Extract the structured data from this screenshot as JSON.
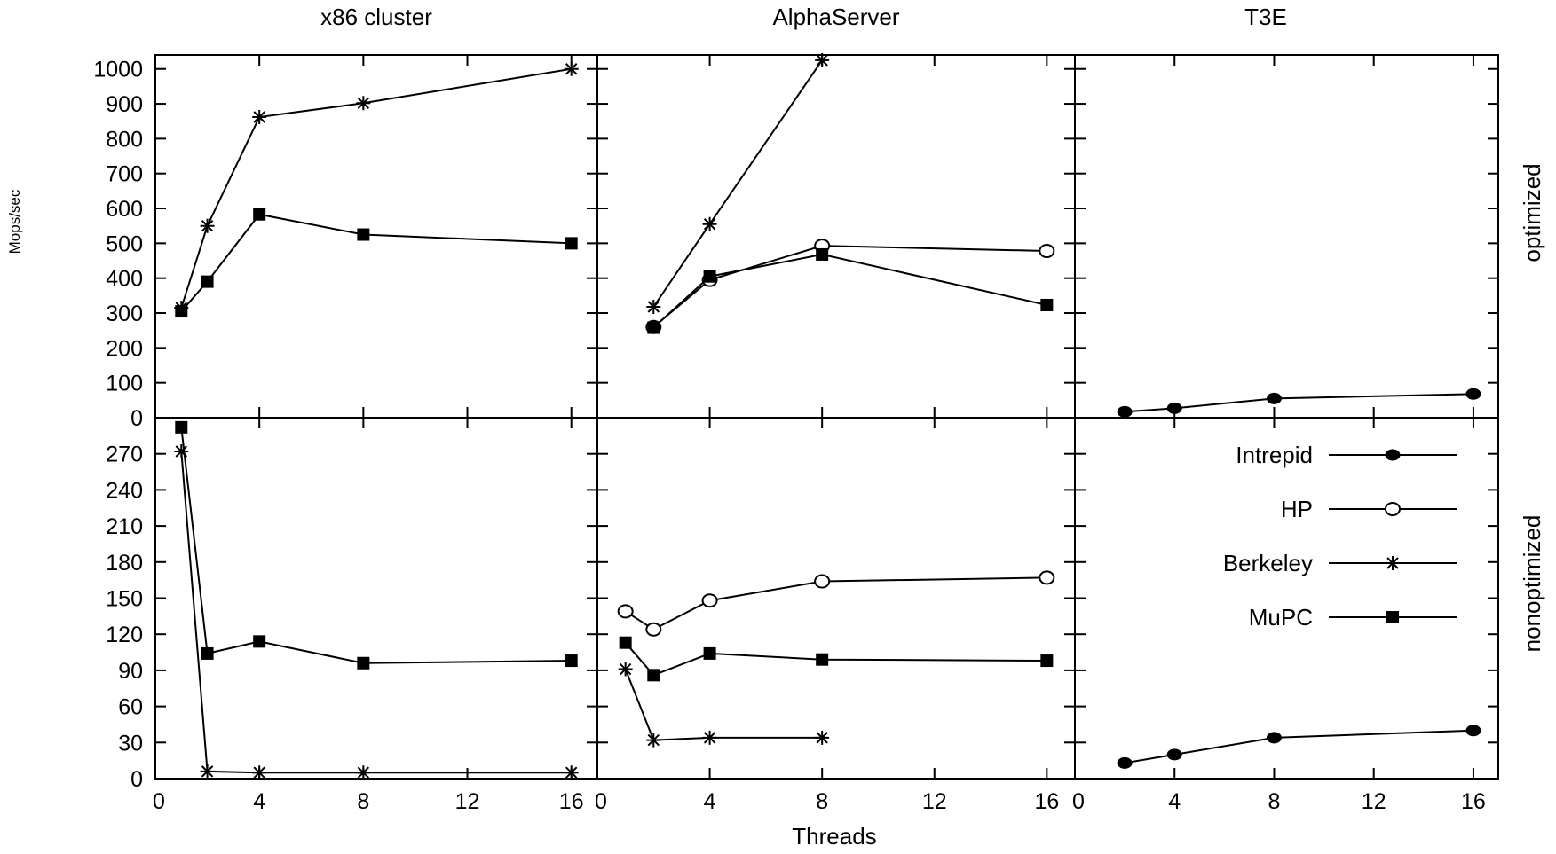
{
  "figure": {
    "ylabel": "Mops/sec",
    "xlabel": "Threads",
    "row_labels": [
      "optimized",
      "nonoptimized"
    ],
    "column_titles": [
      "x86 cluster",
      "AlphaServer",
      "T3E"
    ],
    "legend": [
      {
        "name": "Intrepid",
        "marker": "filled-circle"
      },
      {
        "name": "HP",
        "marker": "open-circle"
      },
      {
        "name": "Berkeley",
        "marker": "asterisk"
      },
      {
        "name": "MuPC",
        "marker": "filled-square"
      }
    ],
    "colors": {
      "line": "#000000",
      "background": "#ffffff"
    }
  },
  "chart_data": [
    {
      "type": "line",
      "row": "optimized",
      "column": "x86 cluster",
      "xlim": [
        0,
        17
      ],
      "ylim": [
        0,
        1040
      ],
      "xticks": [
        0,
        4,
        8,
        12,
        16
      ],
      "yticks": [
        0,
        100,
        200,
        300,
        400,
        500,
        600,
        700,
        800,
        900,
        1000
      ],
      "series": [
        {
          "name": "Berkeley",
          "x": [
            1,
            2,
            4,
            8,
            16
          ],
          "y": [
            315,
            550,
            862,
            902,
            1000
          ]
        },
        {
          "name": "MuPC",
          "x": [
            1,
            2,
            4,
            8,
            16
          ],
          "y": [
            305,
            390,
            583,
            525,
            500
          ]
        }
      ]
    },
    {
      "type": "line",
      "row": "optimized",
      "column": "AlphaServer",
      "xlim": [
        0,
        17
      ],
      "ylim": [
        0,
        1040
      ],
      "xticks": [
        0,
        4,
        8,
        12,
        16
      ],
      "series": [
        {
          "name": "Berkeley",
          "x": [
            2,
            4,
            8
          ],
          "y": [
            318,
            555,
            1025
          ]
        },
        {
          "name": "HP",
          "x": [
            2,
            4,
            8,
            16
          ],
          "y": [
            260,
            395,
            493,
            478
          ]
        },
        {
          "name": "MuPC",
          "x": [
            2,
            4,
            8,
            16
          ],
          "y": [
            258,
            405,
            468,
            323
          ]
        }
      ]
    },
    {
      "type": "line",
      "row": "optimized",
      "column": "T3E",
      "xlim": [
        0,
        17
      ],
      "ylim": [
        0,
        1040
      ],
      "xticks": [
        0,
        4,
        8,
        12,
        16
      ],
      "series": [
        {
          "name": "Intrepid",
          "x": [
            2,
            4,
            8,
            16
          ],
          "y": [
            17,
            27,
            55,
            68
          ]
        }
      ]
    },
    {
      "type": "line",
      "row": "nonoptimized",
      "column": "x86 cluster",
      "xlim": [
        0,
        17
      ],
      "ylim": [
        0,
        300
      ],
      "xticks": [
        0,
        4,
        8,
        12,
        16
      ],
      "yticks": [
        0,
        30,
        60,
        90,
        120,
        150,
        180,
        210,
        240,
        270
      ],
      "series": [
        {
          "name": "Berkeley",
          "x": [
            1,
            2,
            4,
            8,
            16
          ],
          "y": [
            272,
            6,
            5,
            5,
            5
          ]
        },
        {
          "name": "MuPC",
          "x": [
            1,
            2,
            4,
            8,
            16
          ],
          "y": [
            292,
            104,
            114,
            96,
            98
          ]
        }
      ]
    },
    {
      "type": "line",
      "row": "nonoptimized",
      "column": "AlphaServer",
      "xlim": [
        0,
        17
      ],
      "ylim": [
        0,
        300
      ],
      "xticks": [
        0,
        4,
        8,
        12,
        16
      ],
      "series": [
        {
          "name": "HP",
          "x": [
            1,
            2,
            4,
            8,
            16
          ],
          "y": [
            139,
            124,
            148,
            164,
            167
          ]
        },
        {
          "name": "MuPC",
          "x": [
            1,
            2,
            4,
            8,
            16
          ],
          "y": [
            113,
            86,
            104,
            99,
            98
          ]
        },
        {
          "name": "Berkeley",
          "x": [
            1,
            2,
            4,
            8
          ],
          "y": [
            91,
            32,
            34,
            34
          ]
        }
      ]
    },
    {
      "type": "line",
      "row": "nonoptimized",
      "column": "T3E",
      "xlim": [
        0,
        17
      ],
      "ylim": [
        0,
        300
      ],
      "xticks": [
        0,
        4,
        8,
        12,
        16
      ],
      "series": [
        {
          "name": "Intrepid",
          "x": [
            2,
            4,
            8,
            16
          ],
          "y": [
            13,
            20,
            34,
            40
          ]
        }
      ]
    }
  ]
}
